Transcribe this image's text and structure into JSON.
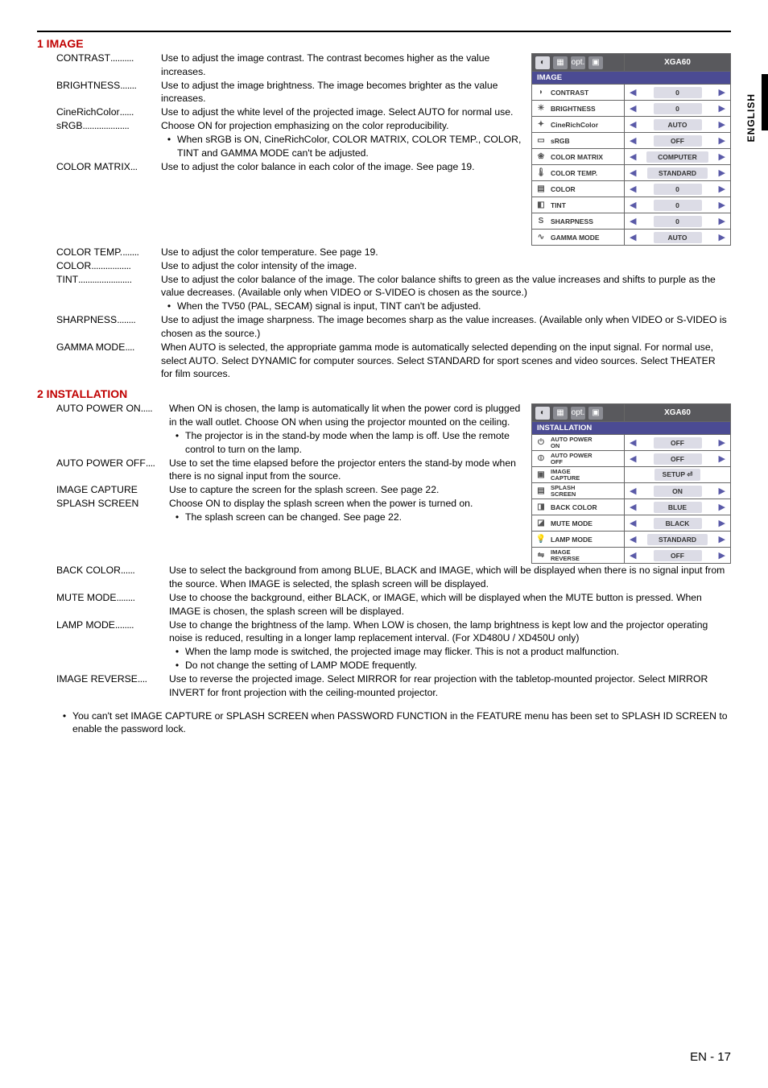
{
  "page": {
    "lang_label": "ENGLISH",
    "page_num": "EN - 17"
  },
  "section_image": {
    "title": "1 IMAGE",
    "items": [
      {
        "label": "CONTRAST",
        "dots": "..........",
        "body": "Use to adjust the image contrast. The contrast becomes higher as the value increases."
      },
      {
        "label": "BRIGHTNESS",
        "dots": ".......",
        "body": "Use to adjust the image brightness. The image becomes brighter as the value increases."
      },
      {
        "label": "CineRichColor",
        "dots": "......",
        "body": "Use to adjust the white level of the projected image. Select AUTO for normal use."
      },
      {
        "label": "sRGB",
        "dots": "....................",
        "body": "Choose ON for projection emphasizing on the color reproducibility.",
        "bullets": [
          "When sRGB is ON, CineRichColor, COLOR MATRIX, COLOR TEMP., COLOR, TINT and GAMMA MODE can't be adjusted."
        ]
      },
      {
        "label": "COLOR MATRIX",
        "dots": "...",
        "body": "Use to adjust the color balance in each color of the image. See page 19."
      },
      {
        "label": "COLOR TEMP.",
        "dots": ".......",
        "body": "Use to adjust the color temperature. See page 19.",
        "full": true
      },
      {
        "label": "COLOR",
        "dots": ".................",
        "body": "Use to adjust the color intensity of the image.",
        "full": true
      },
      {
        "label": "TINT",
        "dots": ".......................",
        "body": "Use to adjust the color balance of the image. The color balance shifts to green as the value increases and shifts to purple as the value decreases. (Available only when VIDEO or S-VIDEO is chosen as the source.)",
        "full": true,
        "bullets": [
          "When the TV50 (PAL, SECAM) signal is input, TINT can't be adjusted."
        ]
      },
      {
        "label": "SHARPNESS",
        "dots": "........",
        "body": "Use to adjust the image sharpness. The image becomes sharp as the value increases. (Available only when VIDEO or S-VIDEO is chosen as the source.)",
        "full": true
      },
      {
        "label": "GAMMA MODE",
        "dots": "....",
        "body": "When AUTO is selected, the appropriate gamma mode is automatically selected depending on the input signal. For normal use, select  AUTO. Select DYNAMIC for computer sources. Select STANDARD for sport scenes and video sources. Select THEATER for film sources.",
        "full": true
      }
    ]
  },
  "section_install": {
    "title": "2 INSTALLATION",
    "items": [
      {
        "label": "AUTO POWER ON",
        "dots": ".....",
        "body": "When ON is chosen, the lamp is automatically lit when the power cord is plugged in the wall outlet. Choose ON when using the projector mounted on the ceiling.",
        "bullets": [
          "The projector is in the stand-by mode when the lamp is off.  Use the remote control to turn on the lamp."
        ]
      },
      {
        "label": "AUTO POWER OFF",
        "dots": "....",
        "body": "Use to set the time elapsed before the projector enters the stand-by mode when there is no signal input from the source."
      },
      {
        "label": "IMAGE CAPTURE",
        "dots": "",
        "body": "Use to capture the screen for the splash screen. See page 22."
      },
      {
        "label": "SPLASH SCREEN",
        "dots": "",
        "body": "Choose ON to display the splash screen when the power is turned on.",
        "bullets_full": [
          "The splash screen can be changed. See page 22."
        ]
      },
      {
        "label": "BACK COLOR",
        "dots": "......",
        "body": "Use to select the background from among BLUE, BLACK and IMAGE, which will be displayed when there is no signal input from the source. When IMAGE is selected, the splash screen will be displayed.",
        "full": true
      },
      {
        "label": "MUTE MODE",
        "dots": "........",
        "body": "Use to choose the background, either BLACK, or IMAGE, which will be displayed when the MUTE button is pressed. When IMAGE is chosen, the splash screen will be displayed.",
        "full": true
      },
      {
        "label": "LAMP MODE",
        "dots": "........",
        "body": "Use to change the brightness of the lamp. When LOW is chosen, the lamp brightness is kept low and the projector operating noise is reduced, resulting in a longer lamp replacement interval. (For XD480U / XD450U only)",
        "full": true,
        "bullets": [
          "When the lamp mode is switched, the projected image may flicker. This is not a product malfunction.",
          "Do not change the setting of LAMP MODE frequently."
        ]
      },
      {
        "label": "IMAGE REVERSE",
        "dots": "....",
        "body": "Use to reverse the projected image. Select MIRROR for rear projection with the tabletop-mounted projector. Select MIRROR INVERT for front projection with the ceiling-mounted projector.",
        "full": true
      }
    ],
    "footer": "You can't set IMAGE CAPTURE or SPLASH SCREEN when PASSWORD FUNCTION in the FEATURE menu has been set to SPLASH ID SCREEN to enable the password lock."
  },
  "menu_image": {
    "hdr_icons": [
      "◐",
      "▦",
      "opt.",
      "▣"
    ],
    "hdr_title": "XGA60",
    "section": "IMAGE",
    "rows": [
      {
        "icon": "◗",
        "label": "CONTRAST",
        "val": "0"
      },
      {
        "icon": "☀",
        "label": "BRIGHTNESS",
        "val": "0"
      },
      {
        "icon": "✦",
        "label": "CineRichColor",
        "val": "AUTO"
      },
      {
        "icon": "▭",
        "label": "sRGB",
        "val": "OFF"
      },
      {
        "icon": "❀",
        "label": "COLOR MATRIX",
        "val": "COMPUTER"
      },
      {
        "icon": "🌡",
        "label": "COLOR TEMP.",
        "val": "STANDARD"
      },
      {
        "icon": "▤",
        "label": "COLOR",
        "val": "0"
      },
      {
        "icon": "◧",
        "label": "TINT",
        "val": "0"
      },
      {
        "icon": "S",
        "label": "SHARPNESS",
        "val": "0"
      },
      {
        "icon": "∿",
        "label": "GAMMA MODE",
        "val": "AUTO"
      }
    ]
  },
  "menu_install": {
    "hdr_icons": [
      "◐",
      "▦",
      "opt.",
      "▣"
    ],
    "hdr_title": "XGA60",
    "section": "INSTALLATION",
    "rows": [
      {
        "icon": "⏻",
        "label": "AUTO POWER\nON",
        "val": "OFF"
      },
      {
        "icon": "⏼",
        "label": "AUTO POWER\nOFF",
        "val": "OFF"
      },
      {
        "icon": "▣",
        "label": "IMAGE\nCAPTURE",
        "val": "SETUP ⏎",
        "setup": true
      },
      {
        "icon": "▤",
        "label": "SPLASH\nSCREEN",
        "val": "ON"
      },
      {
        "icon": "◨",
        "label": "BACK COLOR",
        "val": "BLUE"
      },
      {
        "icon": "◪",
        "label": "MUTE MODE",
        "val": "BLACK"
      },
      {
        "icon": "💡",
        "label": "LAMP MODE",
        "val": "STANDARD"
      },
      {
        "icon": "⇋",
        "label": "IMAGE\nREVERSE",
        "val": "OFF"
      }
    ]
  },
  "glyphs": {
    "tri_l": "◀",
    "tri_r": "▶",
    "bullet": "•"
  }
}
